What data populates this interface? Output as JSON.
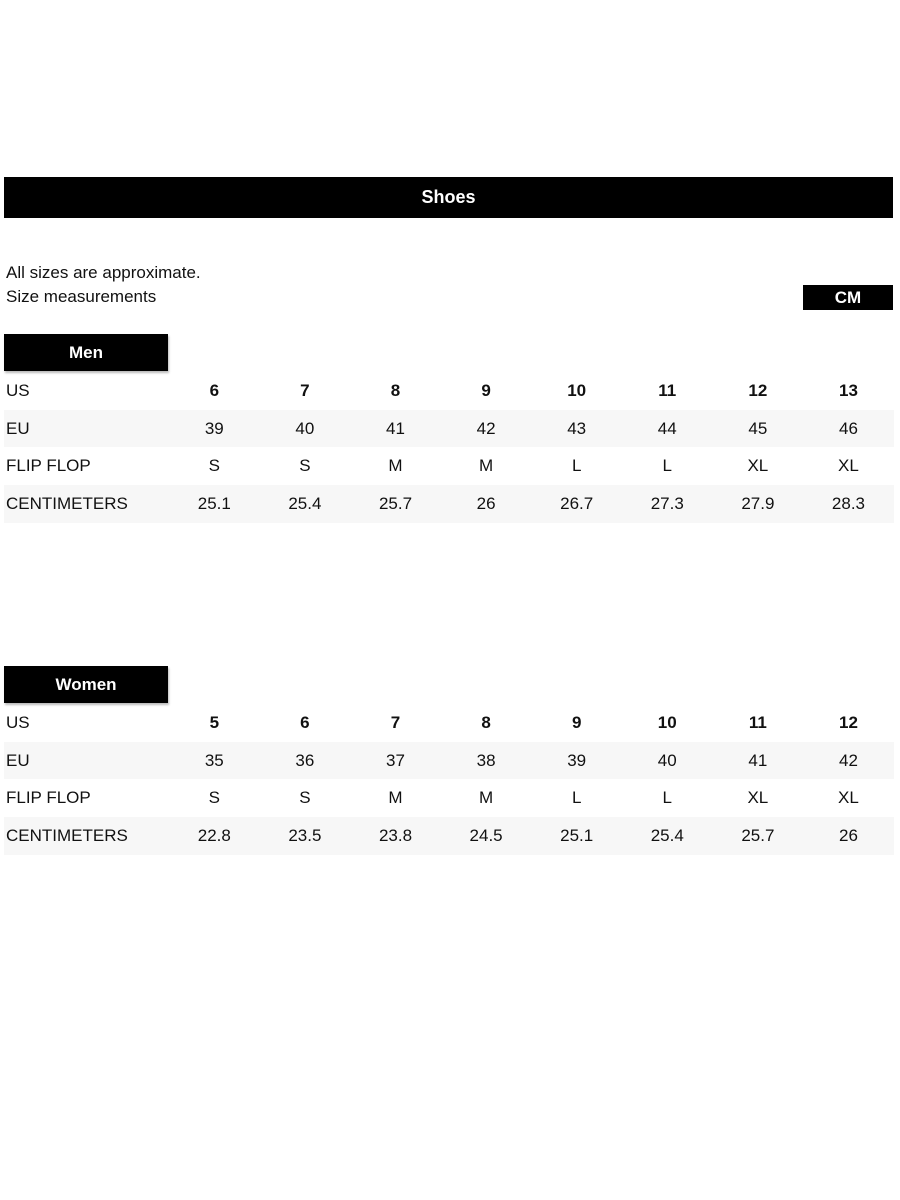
{
  "title": "Shoes",
  "notes": [
    "All sizes are approximate.",
    "Size measurements"
  ],
  "unit_badge": "CM",
  "sections": [
    {
      "label": "Men",
      "rows": [
        {
          "label": "US",
          "values": [
            "6",
            "7",
            "8",
            "9",
            "10",
            "11",
            "12",
            "13"
          ]
        },
        {
          "label": "EU",
          "values": [
            "39",
            "40",
            "41",
            "42",
            "43",
            "44",
            "45",
            "46"
          ]
        },
        {
          "label": "FLIP FLOP",
          "values": [
            "S",
            "S",
            "M",
            "M",
            "L",
            "L",
            "XL",
            "XL"
          ]
        },
        {
          "label": "CENTIMETERS",
          "values": [
            "25.1",
            "25.4",
            "25.7",
            "26",
            "26.7",
            "27.3",
            "27.9",
            "28.3"
          ]
        }
      ]
    },
    {
      "label": "Women",
      "rows": [
        {
          "label": "US",
          "values": [
            "5",
            "6",
            "7",
            "8",
            "9",
            "10",
            "11",
            "12"
          ]
        },
        {
          "label": "EU",
          "values": [
            "35",
            "36",
            "37",
            "38",
            "39",
            "40",
            "41",
            "42"
          ]
        },
        {
          "label": "FLIP FLOP",
          "values": [
            "S",
            "S",
            "M",
            "M",
            "L",
            "L",
            "XL",
            "XL"
          ]
        },
        {
          "label": "CENTIMETERS",
          "values": [
            "22.8",
            "23.5",
            "23.8",
            "24.5",
            "25.1",
            "25.4",
            "25.7",
            "26"
          ]
        }
      ]
    }
  ]
}
